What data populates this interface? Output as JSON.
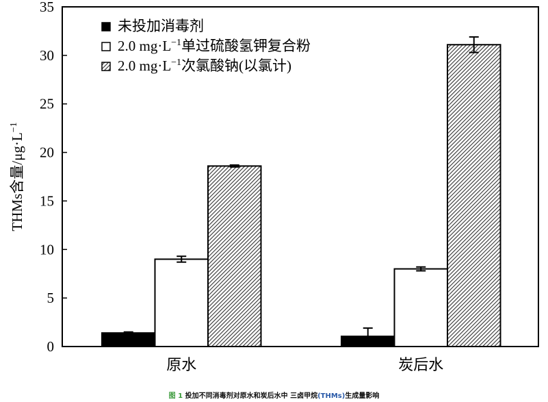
{
  "chart_data": {
    "type": "bar",
    "ylabel": "THMs含量/μg·L",
    "ylabel_sup": "−1",
    "ylim": [
      0,
      35
    ],
    "yticks": [
      0,
      5,
      10,
      15,
      20,
      25,
      30,
      35
    ],
    "categories": [
      "原水",
      "炭后水"
    ],
    "series": [
      {
        "name": "未投加消毒剂",
        "name_prefix": "",
        "name_sup": "",
        "fill": "black",
        "values": [
          1.4,
          1.05
        ],
        "errors": [
          0.1,
          0.85
        ]
      },
      {
        "name": "单过硫酸氢钾复合粉",
        "name_prefix": "2.0 mg·L",
        "name_sup": "−1",
        "fill": "white",
        "values": [
          9.0,
          8.0
        ],
        "errors": [
          0.3,
          0.2
        ]
      },
      {
        "name": "次氯酸钠(以氯计)",
        "name_prefix": "2.0 mg·L",
        "name_sup": "−1",
        "fill": "hatch",
        "values": [
          18.6,
          31.1
        ],
        "errors": [
          0.1,
          0.8
        ]
      }
    ],
    "legend": "top-left",
    "grid": false
  },
  "caption": {
    "fig": "图 1",
    "text1": " 投加不同消毒剂对原水和炭后水中 三卤甲烷",
    "thms": "(THMs)",
    "text2": "生成量影响"
  }
}
